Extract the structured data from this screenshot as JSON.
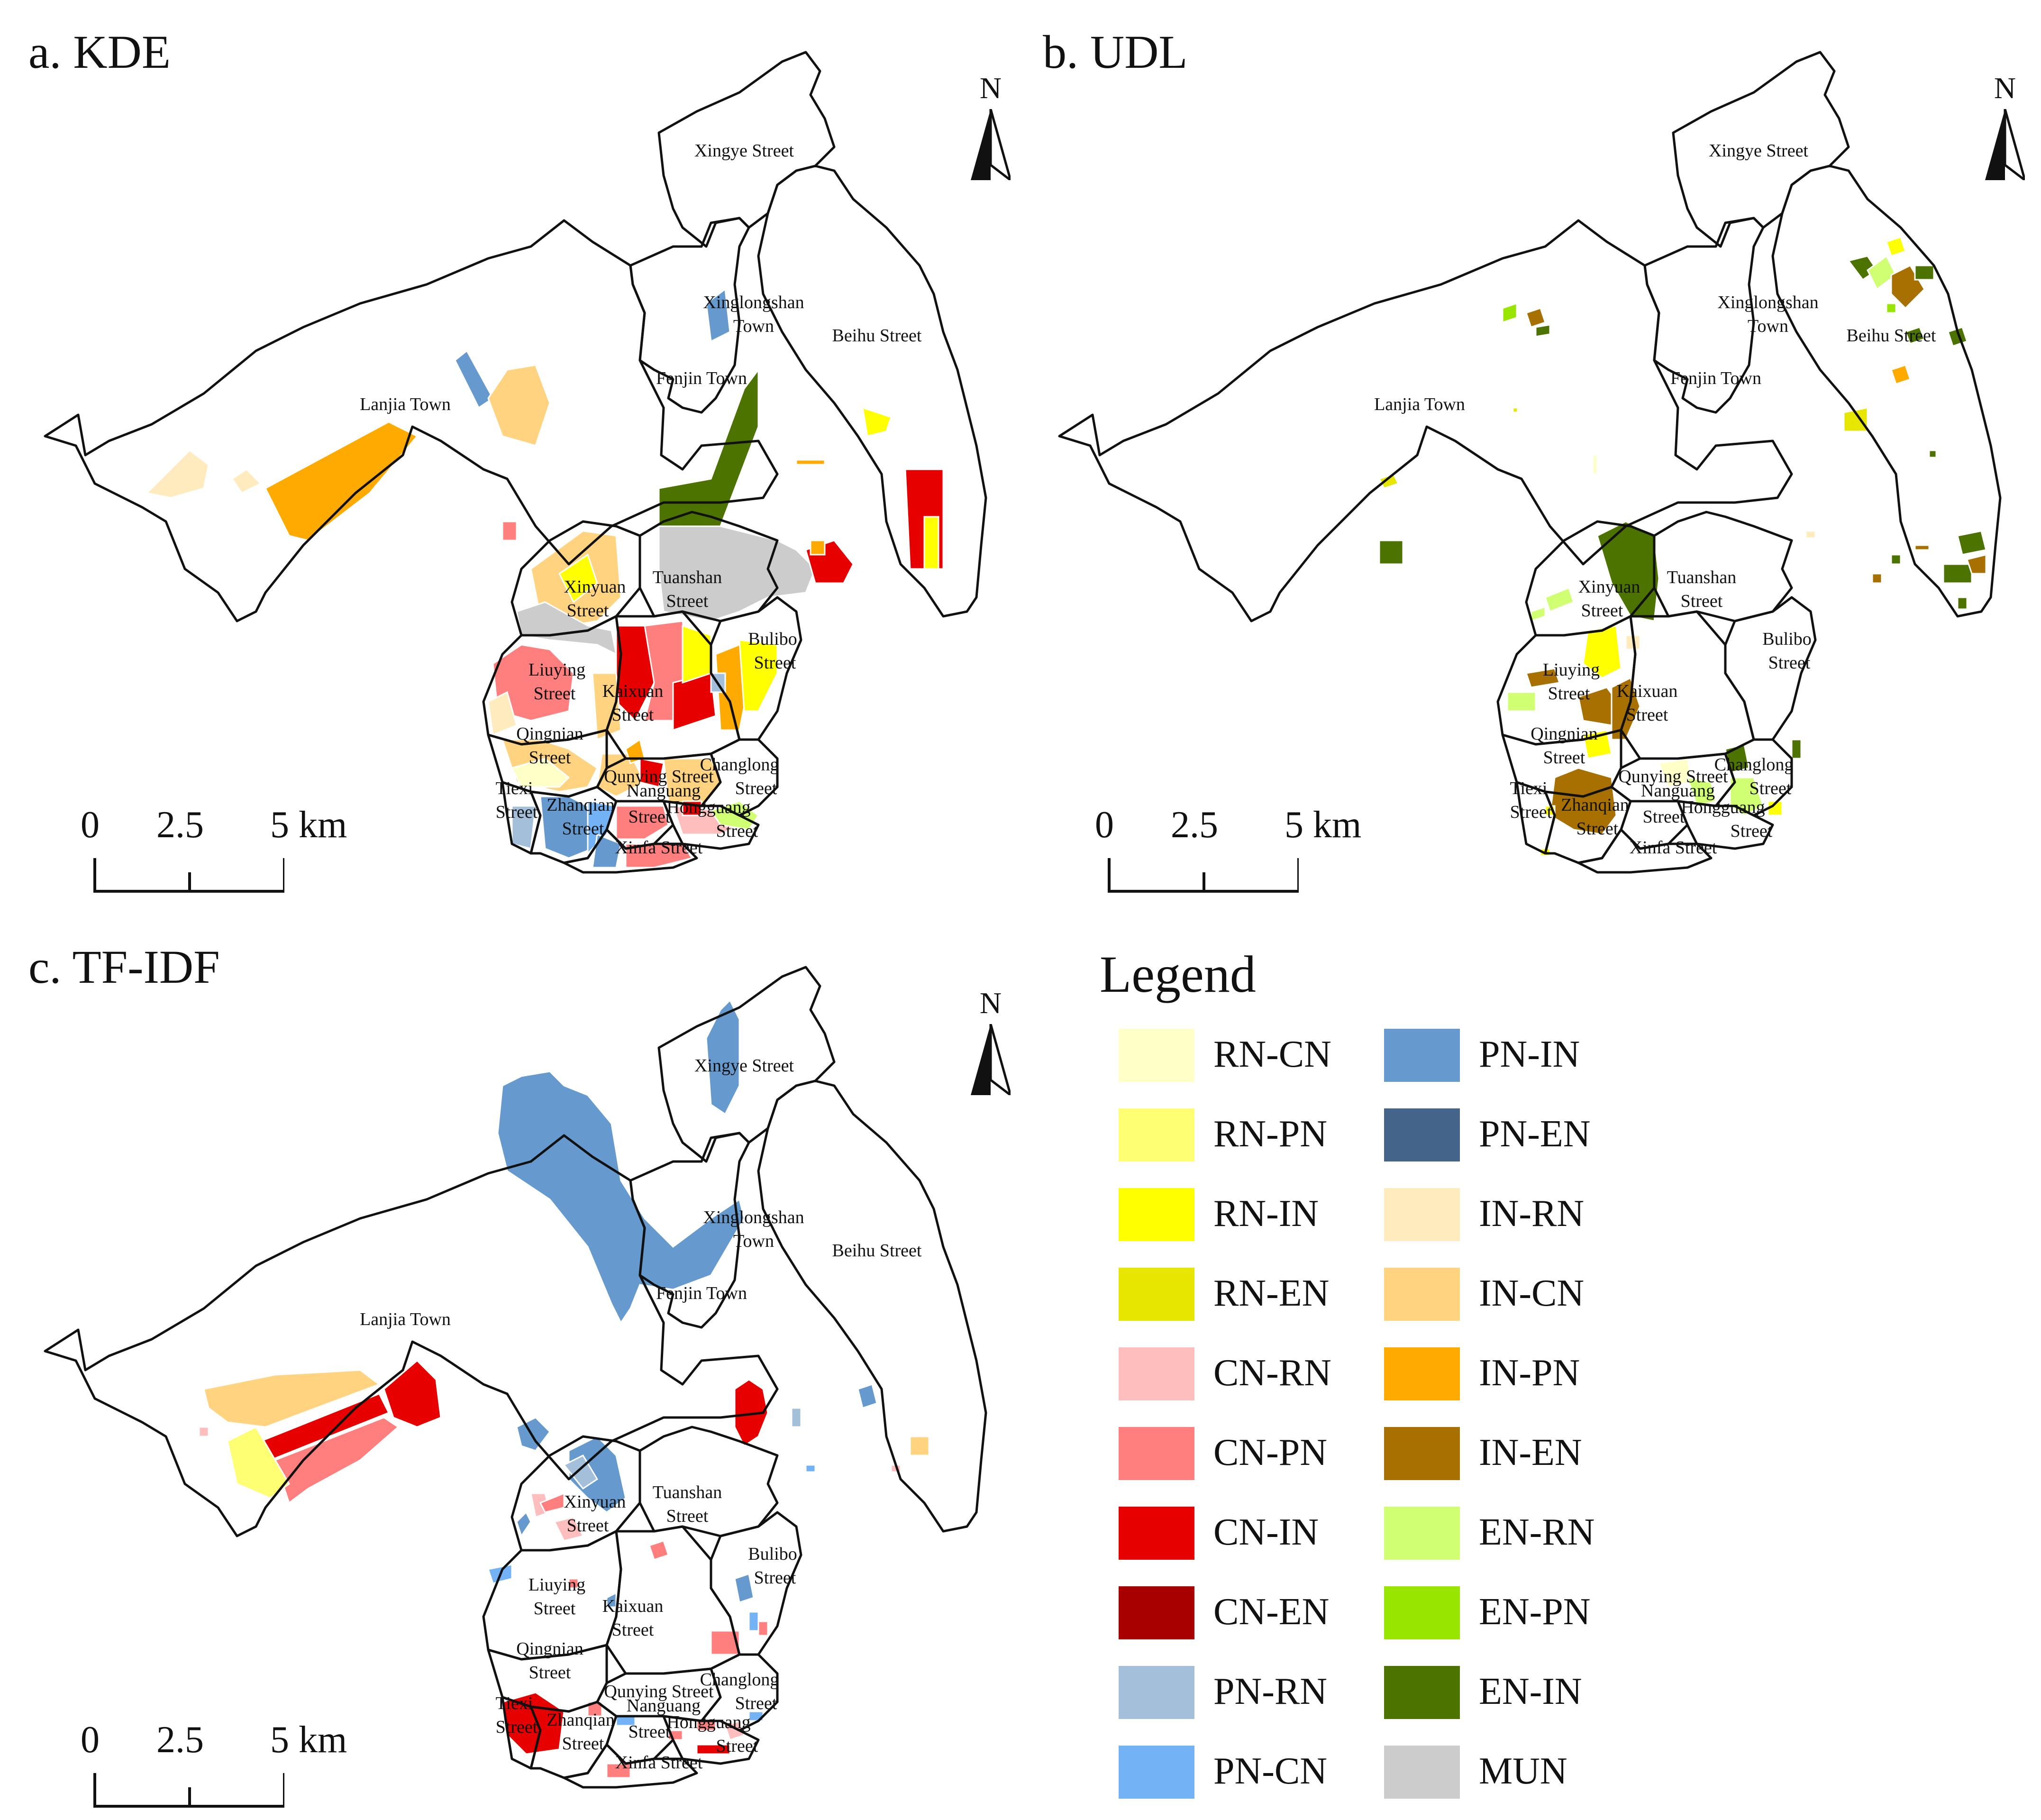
{
  "panels": [
    {
      "id": "a",
      "title": "a. KDE"
    },
    {
      "id": "b",
      "title": "b. UDL"
    },
    {
      "id": "c",
      "title": "c. TF-IDF"
    }
  ],
  "north_label": "N",
  "scale_bar": {
    "ticks": [
      "0",
      "2.5",
      "5 km"
    ]
  },
  "place_names": {
    "xingye": "Xingye Street",
    "xinglongshan_1": "Xinglongshan",
    "xinglongshan_2": "Town",
    "beihu": "Beihu Street",
    "fenjin": "Fenjin Town",
    "lanjia": "Lanjia Town",
    "xinyuan_1": "Xinyuan",
    "xinyuan_2": "Street",
    "tuanshan_1": "Tuanshan",
    "tuanshan_2": "Street",
    "bulibo_1": "Bulibo",
    "bulibo_2": "Street",
    "liuying_1": "Liuying",
    "liuying_2": "Street",
    "kaixuan_1": "Kaixuan",
    "kaixuan_2": "Street",
    "qingnian_1": "Qingnian",
    "qingnian_2": "Street",
    "qunying": "Qunying Street",
    "changlong_1": "Changlong",
    "changlong_2": "Street",
    "tiexi_1": "Tiexi",
    "tiexi_2": "Street",
    "zhanqian_1": "Zhanqian",
    "zhanqian_2": "Street",
    "nanguang_1": "Nanguang",
    "nanguang_2": "Street",
    "hongguang_1": "Hongguang",
    "hongguang_2": "Street",
    "xinfa": "Xinfa Street"
  },
  "legend": {
    "title": "Legend",
    "items": [
      {
        "label": "RN-CN",
        "color": "#FFFFC8"
      },
      {
        "label": "RN-PN",
        "color": "#FFFF73"
      },
      {
        "label": "RN-IN",
        "color": "#FFFF00"
      },
      {
        "label": "RN-EN",
        "color": "#E6E600"
      },
      {
        "label": "CN-RN",
        "color": "#FFBEBE"
      },
      {
        "label": "CN-PN",
        "color": "#FF7F7F"
      },
      {
        "label": "CN-IN",
        "color": "#E60000"
      },
      {
        "label": "CN-EN",
        "color": "#A80000"
      },
      {
        "label": "PN-RN",
        "color": "#A3BFD9"
      },
      {
        "label": "PN-CN",
        "color": "#73B2F5"
      },
      {
        "label": "PN-IN",
        "color": "#6699CD"
      },
      {
        "label": "PN-EN",
        "color": "#446589"
      },
      {
        "label": "IN-RN",
        "color": "#FFEBBE"
      },
      {
        "label": "IN-CN",
        "color": "#FFD37F"
      },
      {
        "label": "IN-PN",
        "color": "#FFAA00"
      },
      {
        "label": "IN-EN",
        "color": "#A87000"
      },
      {
        "label": "EN-RN",
        "color": "#D1FF73"
      },
      {
        "label": "EN-PN",
        "color": "#98E600"
      },
      {
        "label": "EN-IN",
        "color": "#4C7300"
      },
      {
        "label": "MUN",
        "color": "#CCCCCC"
      }
    ]
  }
}
